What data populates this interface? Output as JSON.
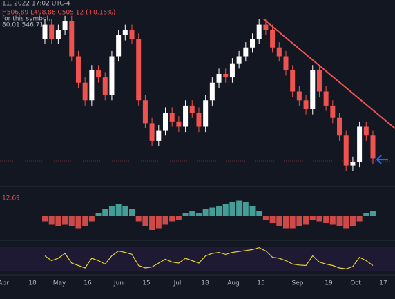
{
  "chart_data": {
    "type": "candlestick",
    "header": [
      "11, 2022 17:02 UTC-4",
      "H506.89 L498.86 C505.12 (+0.15%)",
      "for this symbol.",
      "80.01  546.71"
    ],
    "macd_label": "12.69",
    "xticks": [
      "Apr",
      "18",
      "May",
      "16",
      "Jun",
      "15",
      "Jul",
      "18",
      "Aug",
      "15",
      "Sep",
      "19",
      "Oct",
      "17"
    ],
    "ylim": [
      0,
      100
    ],
    "up_color": "#ffffff",
    "down_color": "#ef5350",
    "open": [
      80,
      88,
      80,
      85,
      90,
      70,
      55,
      45,
      62,
      58,
      48,
      70,
      82,
      85,
      80,
      45,
      32,
      22,
      28,
      38,
      33,
      30,
      42,
      38,
      30,
      45,
      55,
      60,
      58,
      66,
      70,
      75,
      80,
      88,
      85,
      75,
      70,
      62,
      50,
      45,
      40,
      62,
      50,
      42,
      35,
      25,
      8,
      10,
      30,
      25
    ],
    "high": [
      91,
      91,
      88,
      93,
      93,
      73,
      58,
      65,
      65,
      61,
      73,
      85,
      88,
      88,
      83,
      48,
      35,
      31,
      41,
      41,
      36,
      45,
      45,
      41,
      48,
      58,
      63,
      63,
      69,
      73,
      78,
      83,
      91,
      91,
      88,
      78,
      73,
      65,
      53,
      48,
      65,
      65,
      53,
      45,
      38,
      28,
      13,
      33,
      33,
      28
    ],
    "low": [
      77,
      77,
      77,
      82,
      67,
      52,
      42,
      42,
      55,
      45,
      45,
      67,
      79,
      77,
      42,
      29,
      19,
      19,
      25,
      30,
      27,
      27,
      35,
      27,
      27,
      42,
      52,
      55,
      55,
      63,
      67,
      72,
      77,
      82,
      72,
      67,
      59,
      47,
      42,
      37,
      37,
      47,
      39,
      32,
      22,
      5,
      5,
      7,
      22,
      9
    ],
    "close": [
      88,
      80,
      85,
      90,
      70,
      55,
      45,
      62,
      58,
      48,
      70,
      82,
      85,
      80,
      45,
      32,
      22,
      28,
      38,
      33,
      30,
      42,
      38,
      30,
      45,
      55,
      60,
      58,
      66,
      70,
      75,
      80,
      88,
      85,
      75,
      70,
      62,
      50,
      45,
      40,
      62,
      50,
      42,
      35,
      25,
      8,
      10,
      30,
      25,
      12
    ],
    "histogram": {
      "ylim": [
        -1.2,
        1.2
      ],
      "up_color": "#4db6ac",
      "down_color": "#ef5350",
      "values": [
        -0.3,
        -0.5,
        -0.6,
        -0.5,
        -0.6,
        -0.7,
        -0.6,
        -0.3,
        0.2,
        0.4,
        0.6,
        0.7,
        0.6,
        0.4,
        -0.3,
        -0.6,
        -0.8,
        -0.7,
        -0.5,
        -0.3,
        -0.2,
        0.2,
        0.3,
        0.2,
        0.4,
        0.5,
        0.6,
        0.7,
        0.8,
        0.9,
        0.8,
        0.6,
        0.3,
        -0.2,
        -0.4,
        -0.6,
        -0.7,
        -0.7,
        -0.6,
        -0.5,
        -0.2,
        -0.3,
        -0.4,
        -0.5,
        -0.6,
        -0.7,
        -0.6,
        -0.3,
        0.2,
        0.3
      ]
    },
    "rsi": {
      "ylim": [
        20,
        80
      ],
      "color": "#e6d32a",
      "values": [
        55,
        45,
        50,
        60,
        40,
        35,
        30,
        50,
        45,
        38,
        55,
        65,
        62,
        58,
        35,
        30,
        32,
        40,
        48,
        42,
        40,
        50,
        45,
        40,
        55,
        60,
        62,
        58,
        62,
        64,
        66,
        68,
        72,
        65,
        52,
        50,
        45,
        38,
        36,
        35,
        55,
        42,
        38,
        35,
        30,
        28,
        33,
        52,
        45,
        35
      ]
    }
  }
}
